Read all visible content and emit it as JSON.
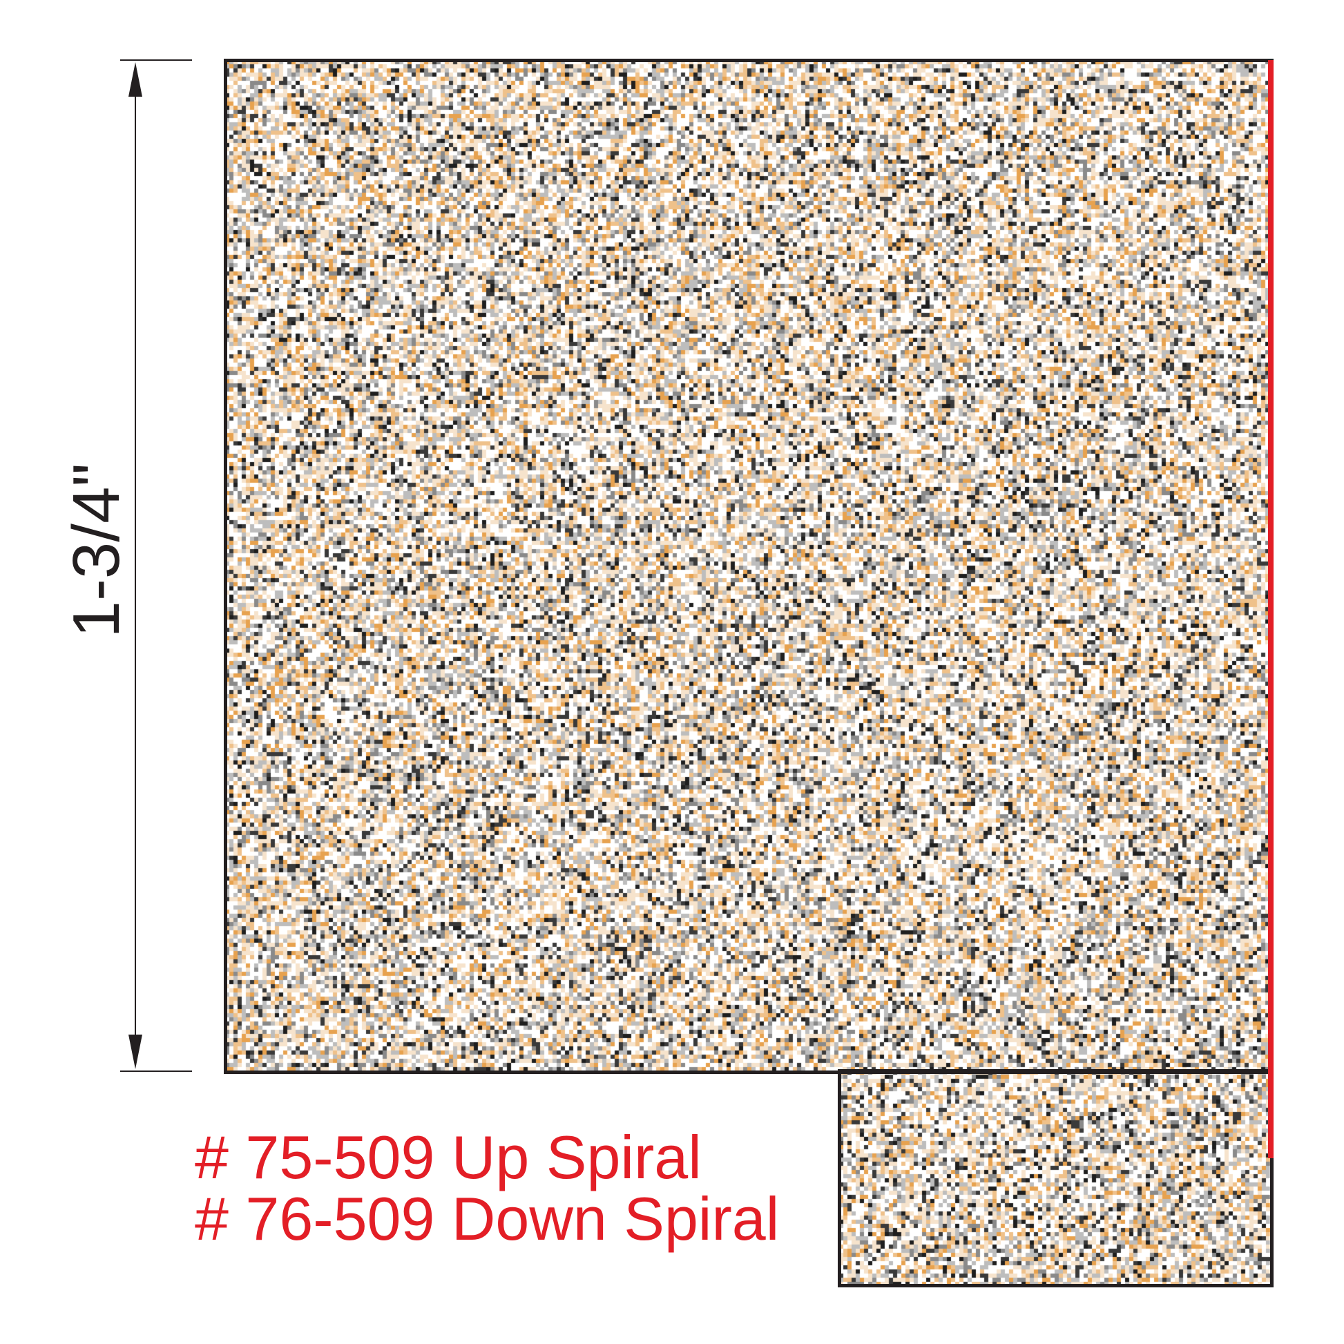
{
  "dimension": {
    "label": "1-3/4\""
  },
  "labels": [
    "# 75-509 Up Spiral",
    "# 76-509 Down Spiral"
  ],
  "colors": {
    "accent": "#e31e26",
    "outline": "#231f20",
    "material": [
      "#ffffff",
      "#f6e3cc",
      "#efc18a",
      "#e7a24f",
      "#bdbdbd",
      "#8a8a8a",
      "#3a3a3a",
      "#1f1f1f"
    ]
  }
}
